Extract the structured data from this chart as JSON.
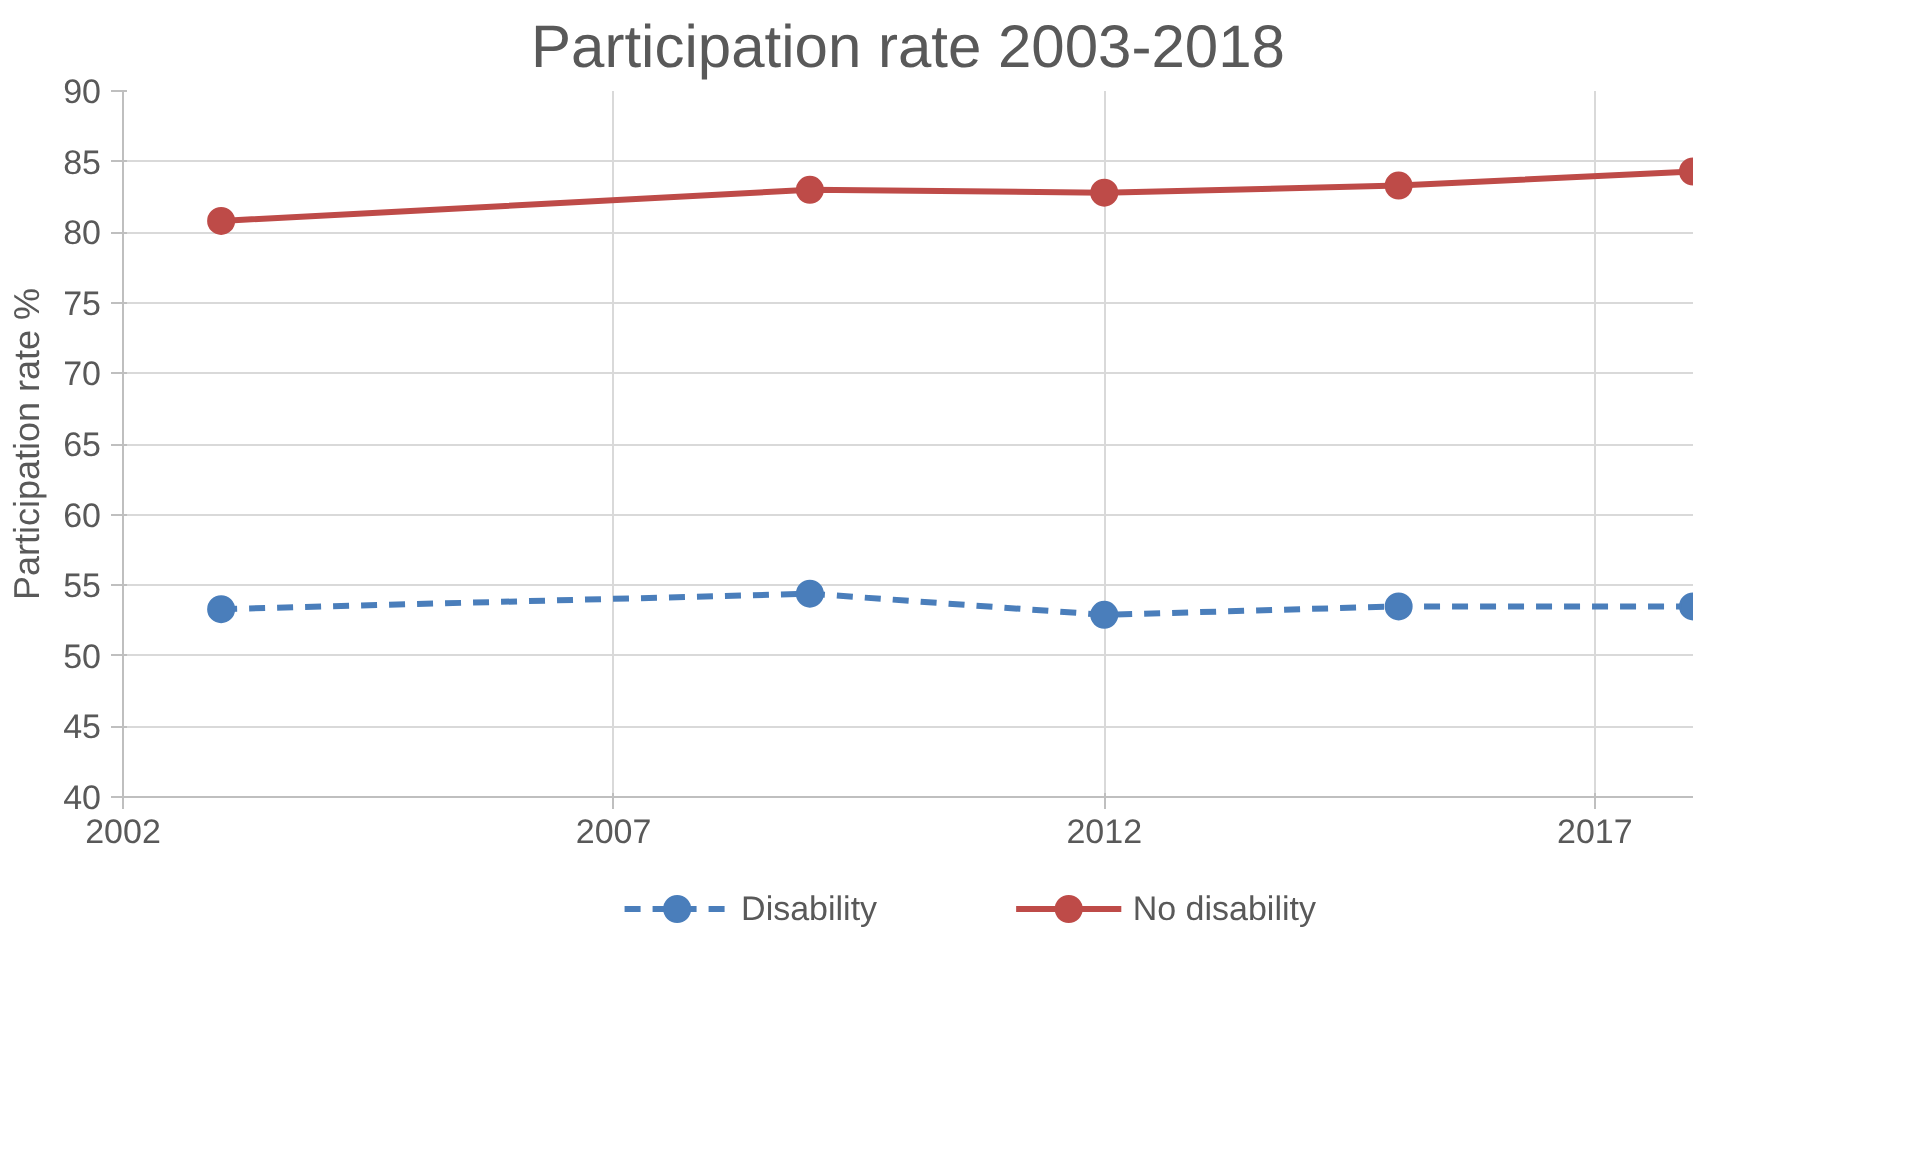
{
  "chart_data": {
    "type": "line",
    "title": "Participation rate 2003-2018",
    "ylabel": "Participation rate %",
    "x": [
      2003,
      2009,
      2012,
      2015,
      2018
    ],
    "series": [
      {
        "name": "Disability",
        "color": "#4a7ebb",
        "values": [
          53.3,
          54.4,
          52.9,
          53.5,
          53.5
        ],
        "line_style": "dashed"
      },
      {
        "name": "No disability",
        "color": "#be4b48",
        "values": [
          80.8,
          83.0,
          82.8,
          83.3,
          84.3
        ],
        "line_style": "solid"
      }
    ],
    "xlim": [
      2002,
      2018
    ],
    "xticks": [
      2002,
      2007,
      2012,
      2017
    ],
    "ylim": [
      40,
      90
    ],
    "yticks": [
      40,
      45,
      50,
      55,
      60,
      65,
      70,
      75,
      80,
      85,
      90
    ],
    "grid": true,
    "legend": "bottom",
    "marker": "circle"
  }
}
